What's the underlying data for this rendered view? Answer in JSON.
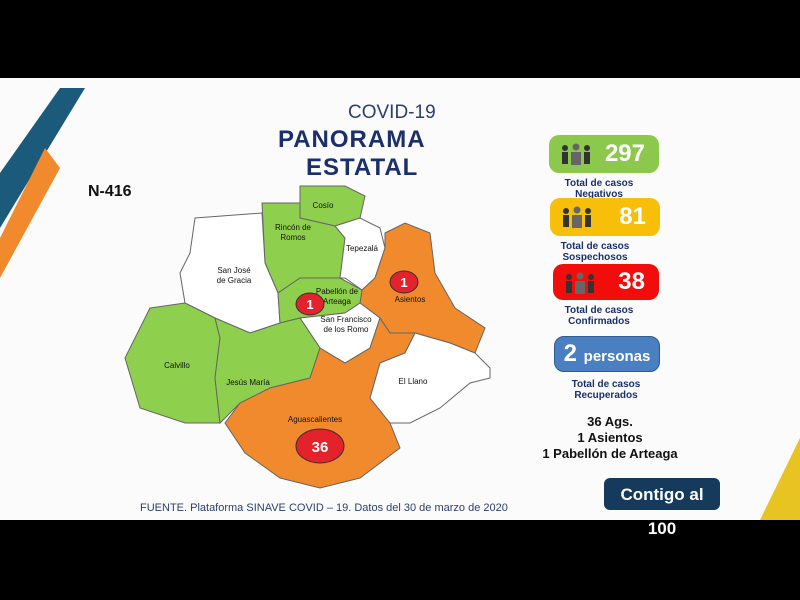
{
  "header": {
    "line1": "COVID-19",
    "line2": "PANORAMA",
    "line3": "ESTATAL"
  },
  "n_label": "N-416",
  "map": {
    "colors": {
      "green": "#8fcf4e",
      "orange": "#f08a2c",
      "white": "#ffffff",
      "marker": "#e3222b"
    },
    "municipalities": [
      {
        "name": "Cosío",
        "status": "green"
      },
      {
        "name": "Rincón de Romos",
        "status": "green"
      },
      {
        "name": "Tepezalá",
        "status": "white"
      },
      {
        "name": "Asientos",
        "status": "orange",
        "cases": "1"
      },
      {
        "name": "San José de Gracia",
        "status": "white"
      },
      {
        "name": "Pabellón de Arteaga",
        "status": "green",
        "cases": "1"
      },
      {
        "name": "San Francisco de los Romo",
        "status": "white"
      },
      {
        "name": "Calvillo",
        "status": "green"
      },
      {
        "name": "Jesús María",
        "status": "green"
      },
      {
        "name": "Aguascalientes",
        "status": "orange",
        "cases": "36"
      },
      {
        "name": "El Llano",
        "status": "white"
      }
    ]
  },
  "stats": [
    {
      "value": "297",
      "label1": "Total de casos",
      "label2": "Negativos",
      "color": "#8cc84b",
      "icon": "people-icon"
    },
    {
      "value": "81",
      "label1": "Total de casos",
      "label2": "Sospechosos",
      "color": "#f7bf0a",
      "icon": "people-icon"
    },
    {
      "value": "38",
      "label1": "Total de casos",
      "label2": "Confirmados",
      "color": "#f20d0d",
      "icon": "people-icon"
    }
  ],
  "recovered": {
    "value": "2",
    "unit": "personas",
    "label1": "Total de casos",
    "label2": "Recuperados",
    "color": "#4a7fc1"
  },
  "summary": [
    "36 Ags.",
    "1 Asientos",
    "1 Pabellón de Arteaga"
  ],
  "source": "FUENTE. Plataforma SINAVE COVID – 19. Datos del 30 de marzo de 2020",
  "logo": "Contigo al 100"
}
